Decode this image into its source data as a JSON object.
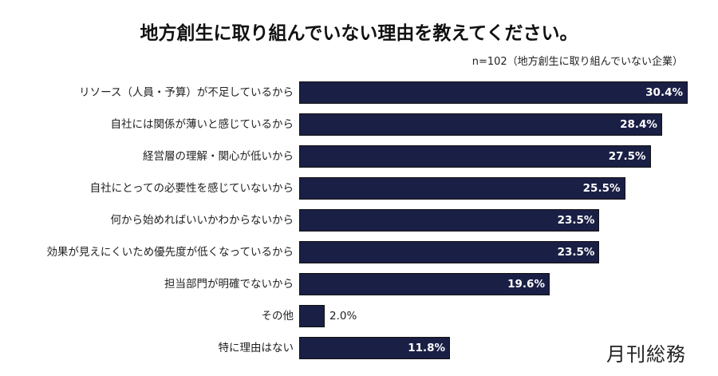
{
  "chart_data": {
    "type": "bar",
    "orientation": "horizontal",
    "title": "地方創生に取り組んでいない理由を教えてください。",
    "subtitle": "n=102（地方創生に取り組んでいない企業）",
    "categories": [
      "リソース（人員・予算）が不足しているから",
      "自社には関係が薄いと感じているから",
      "経営層の理解・関心が低いから",
      "自社にとっての必要性を感じていないから",
      "何から始めればいいかわからないから",
      "効果が見えにくいため優先度が低くなっているから",
      "担当部門が明確でないから",
      "その他",
      "特に理由はない"
    ],
    "values": [
      30.4,
      28.4,
      27.5,
      25.5,
      23.5,
      23.5,
      19.6,
      2.0,
      11.8
    ],
    "value_labels": [
      "30.4%",
      "28.4%",
      "27.5%",
      "25.5%",
      "23.5%",
      "23.5%",
      "19.6%",
      "2.0%",
      "11.8%"
    ],
    "unit": "%",
    "grid": false,
    "bar_color": "#1a1f45"
  },
  "logo": "月刊総務"
}
